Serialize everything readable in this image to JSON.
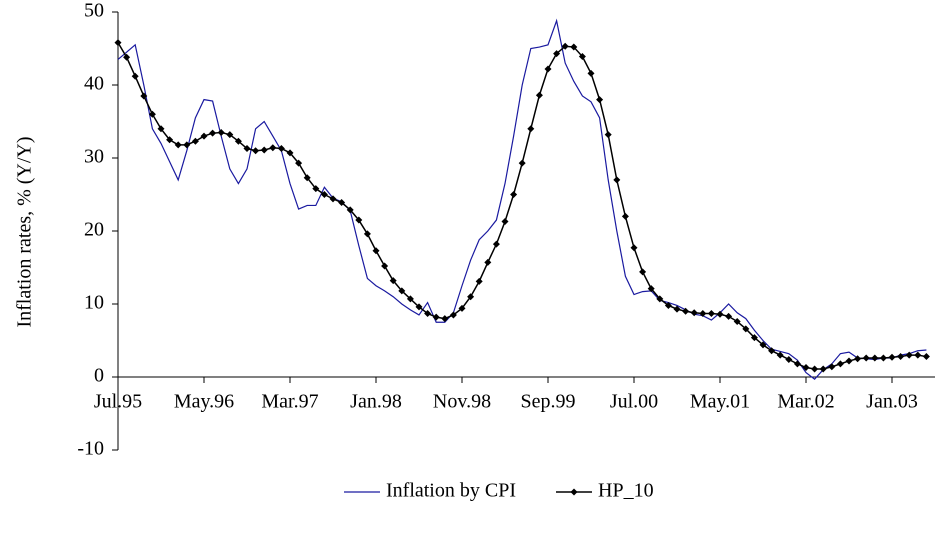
{
  "chart_data": {
    "type": "line",
    "y_label": "Inflation rates, % (Y/Y)",
    "categories": [
      "Jul.95",
      null,
      null,
      null,
      null,
      null,
      null,
      null,
      null,
      null,
      "May.96",
      null,
      null,
      null,
      null,
      null,
      null,
      null,
      null,
      null,
      "Mar.97",
      null,
      null,
      null,
      null,
      null,
      null,
      null,
      null,
      null,
      "Jan.98",
      null,
      null,
      null,
      null,
      null,
      null,
      null,
      null,
      null,
      "Nov.98",
      null,
      null,
      null,
      null,
      null,
      null,
      null,
      null,
      null,
      "Sep.99",
      null,
      null,
      null,
      null,
      null,
      null,
      null,
      null,
      null,
      "Jul.00",
      null,
      null,
      null,
      null,
      null,
      null,
      null,
      null,
      null,
      "May.01",
      null,
      null,
      null,
      null,
      null,
      null,
      null,
      null,
      null,
      "Mar.02",
      null,
      null,
      null,
      null,
      null,
      null,
      null,
      null,
      null,
      "Jan.03",
      null,
      null,
      null,
      null
    ],
    "series": [
      {
        "name": "Inflation by CPI",
        "color": "#1a1aa0",
        "marker": false,
        "values": [
          43.5,
          44.5,
          45.5,
          40,
          34,
          32,
          29.5,
          27,
          31,
          35.5,
          38,
          37.8,
          33,
          28.5,
          26.5,
          28.5,
          34,
          35,
          33,
          31,
          26.5,
          23,
          23.5,
          23.5,
          26,
          24.5,
          24,
          22.8,
          18,
          13.5,
          12.5,
          11.8,
          11,
          10,
          9.2,
          8.5,
          10.2,
          7.5,
          7.5,
          8.8,
          12.5,
          16,
          18.8,
          20,
          21.5,
          26.5,
          33,
          40,
          45,
          45.2,
          45.5,
          48.8,
          43,
          40.5,
          38.5,
          37.7,
          35.5,
          27,
          20,
          13.8,
          11.3,
          11.7,
          11.8,
          10.5,
          10.2,
          9.8,
          9.2,
          8.6,
          8.4,
          7.8,
          8.8,
          10,
          8.8,
          8,
          6.4,
          5,
          3.8,
          3.5,
          3.2,
          2.3,
          0.6,
          -0.3,
          1,
          1.8,
          3.2,
          3.4,
          2.6,
          2.5,
          2.4,
          2.6,
          2.6,
          3,
          3.2,
          3.6,
          3.7
        ]
      },
      {
        "name": "HP_10",
        "color": "#000000",
        "marker": true,
        "values": [
          45.8,
          43.8,
          41.2,
          38.5,
          36,
          34,
          32.5,
          31.8,
          31.8,
          32.3,
          33,
          33.4,
          33.5,
          33.2,
          32.3,
          31.3,
          31,
          31.1,
          31.4,
          31.3,
          30.7,
          29.3,
          27.3,
          25.8,
          25,
          24.4,
          23.9,
          22.9,
          21.5,
          19.6,
          17.3,
          15.2,
          13.2,
          11.8,
          10.7,
          9.6,
          8.7,
          8.2,
          8,
          8.5,
          9.4,
          11,
          13.1,
          15.7,
          18.2,
          21.3,
          25,
          29.3,
          34,
          38.6,
          42.2,
          44.3,
          45.3,
          45.2,
          43.9,
          41.6,
          38,
          33.2,
          27,
          22,
          17.7,
          14.4,
          12.1,
          10.7,
          9.8,
          9.3,
          9,
          8.8,
          8.7,
          8.7,
          8.6,
          8.3,
          7.6,
          6.6,
          5.4,
          4.4,
          3.6,
          3,
          2.4,
          1.8,
          1.3,
          1.1,
          1.1,
          1.4,
          1.8,
          2.2,
          2.5,
          2.6,
          2.6,
          2.6,
          2.7,
          2.8,
          3,
          3,
          2.8
        ]
      }
    ],
    "ylim": [
      -10,
      50
    ],
    "yticks": [
      -10,
      0,
      10,
      20,
      30,
      40,
      50
    ],
    "grid": false,
    "legend": "bottom"
  }
}
